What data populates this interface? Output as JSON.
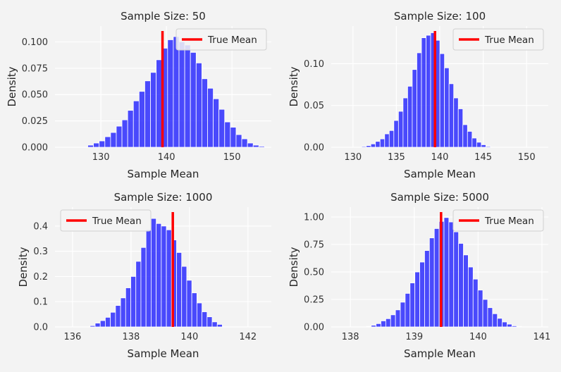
{
  "chart_data": [
    {
      "type": "bar",
      "title": "Sample Size: 50",
      "xlabel": "Sample Mean",
      "ylabel": "Density",
      "xlim": [
        123,
        156
      ],
      "ylim": [
        0,
        0.115
      ],
      "xticks": [
        130,
        140,
        150
      ],
      "yticks": [
        0.0,
        0.025,
        0.05,
        0.075,
        0.1
      ],
      "ytick_labels": [
        "0.000",
        "0.025",
        "0.050",
        "0.075",
        "0.100"
      ],
      "bin_start": 128,
      "bin_width": 0.87,
      "values": [
        0.002,
        0.004,
        0.006,
        0.01,
        0.014,
        0.02,
        0.026,
        0.035,
        0.044,
        0.053,
        0.063,
        0.071,
        0.083,
        0.094,
        0.102,
        0.105,
        0.1,
        0.097,
        0.09,
        0.08,
        0.065,
        0.056,
        0.046,
        0.036,
        0.024,
        0.019,
        0.012,
        0.008,
        0.004,
        0.002,
        0.001
      ],
      "true_mean": 139.4,
      "legend_position": "upper right",
      "legend": "True Mean",
      "grid": true
    },
    {
      "type": "bar",
      "title": "Sample Size: 100",
      "xlabel": "Sample Mean",
      "ylabel": "Density",
      "xlim": [
        127.5,
        152.5
      ],
      "ylim": [
        0,
        0.145
      ],
      "xticks": [
        130,
        135,
        140,
        145,
        150
      ],
      "yticks": [
        0.0,
        0.05,
        0.1
      ],
      "ytick_labels": [
        "0.00",
        "0.05",
        "0.10"
      ],
      "bin_start": 131,
      "bin_width": 0.53,
      "values": [
        0.001,
        0.002,
        0.004,
        0.007,
        0.01,
        0.016,
        0.02,
        0.032,
        0.043,
        0.059,
        0.073,
        0.093,
        0.113,
        0.131,
        0.134,
        0.137,
        0.128,
        0.112,
        0.095,
        0.076,
        0.059,
        0.046,
        0.027,
        0.019,
        0.011,
        0.006,
        0.003,
        0.001
      ],
      "true_mean": 139.45,
      "legend_position": "upper right",
      "legend": "True Mean",
      "grid": true
    },
    {
      "type": "bar",
      "title": "Sample Size: 1000",
      "xlabel": "Sample Mean",
      "ylabel": "Density",
      "xlim": [
        135.4,
        142.8
      ],
      "ylim": [
        0,
        0.475
      ],
      "xticks": [
        136,
        138,
        140,
        142
      ],
      "yticks": [
        0.0,
        0.1,
        0.2,
        0.3,
        0.4
      ],
      "ytick_labels": [
        "0.0",
        "0.1",
        "0.2",
        "0.3",
        "0.4"
      ],
      "bin_start": 136.6,
      "bin_width": 0.174,
      "values": [
        0.005,
        0.015,
        0.025,
        0.038,
        0.058,
        0.085,
        0.115,
        0.155,
        0.2,
        0.26,
        0.315,
        0.385,
        0.43,
        0.41,
        0.4,
        0.385,
        0.345,
        0.295,
        0.24,
        0.185,
        0.135,
        0.095,
        0.06,
        0.04,
        0.02,
        0.01
      ],
      "true_mean": 139.43,
      "legend_position": "upper left",
      "legend": "True Mean",
      "grid": true
    },
    {
      "type": "bar",
      "title": "Sample Size: 5000",
      "xlabel": "Sample Mean",
      "ylabel": "Density",
      "xlim": [
        137.7,
        141.1
      ],
      "ylim": [
        0,
        1.09
      ],
      "xticks": [
        138,
        139,
        140,
        141
      ],
      "yticks": [
        0.0,
        0.25,
        0.5,
        0.75,
        1.0
      ],
      "ytick_labels": [
        "0.00",
        "0.25",
        "0.50",
        "0.75",
        "1.00"
      ],
      "bin_start": 138.25,
      "bin_width": 0.076,
      "values": [
        0.005,
        0.015,
        0.03,
        0.055,
        0.075,
        0.11,
        0.155,
        0.225,
        0.305,
        0.4,
        0.5,
        0.59,
        0.695,
        0.81,
        0.895,
        0.96,
        0.995,
        0.955,
        0.865,
        0.76,
        0.655,
        0.545,
        0.435,
        0.335,
        0.25,
        0.175,
        0.12,
        0.078,
        0.045,
        0.025,
        0.01,
        0.005
      ],
      "true_mean": 139.42,
      "legend_position": "upper right",
      "legend": "True Mean",
      "grid": true
    }
  ],
  "colors": {
    "bar": "#0000ff",
    "true_mean_line": "#ff0000",
    "background": "#f3f3f3"
  }
}
